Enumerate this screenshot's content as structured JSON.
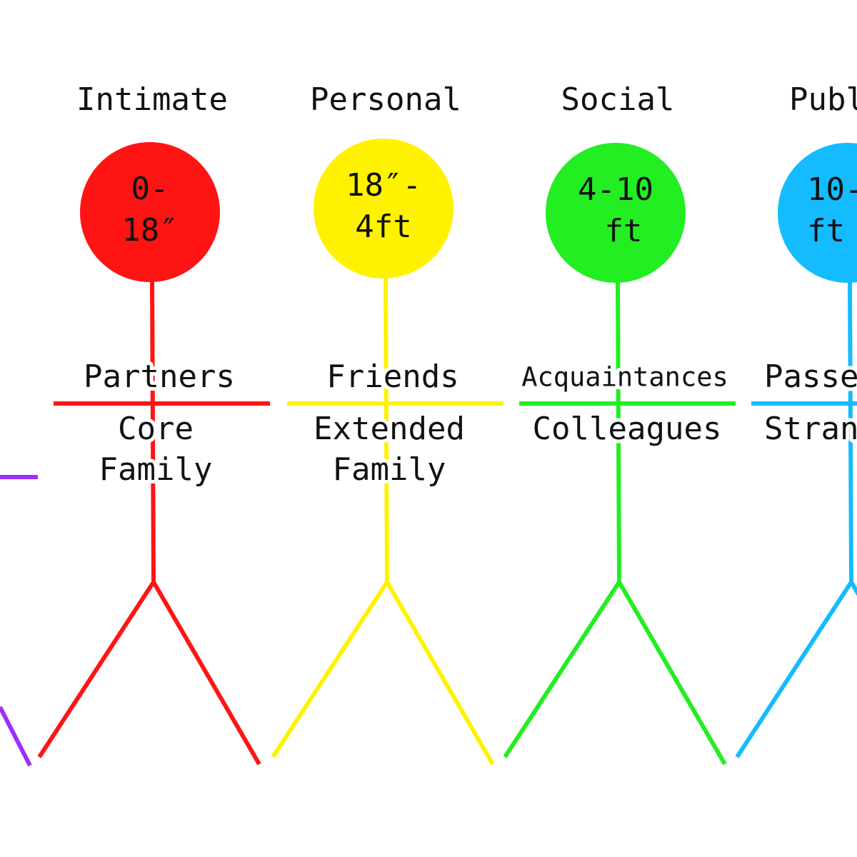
{
  "partial_figure": {
    "color": "#9b30ff"
  },
  "figures": [
    {
      "title": "Intimate",
      "distance": [
        "0-",
        "18″"
      ],
      "above": "Partners",
      "below": [
        "Core",
        "Family"
      ],
      "color": "#ff1414"
    },
    {
      "title": "Personal",
      "distance": [
        "18″-",
        "4ft"
      ],
      "above": "Friends",
      "below": [
        "Extended",
        "Family"
      ],
      "color": "#fff200"
    },
    {
      "title": "Social",
      "distance": [
        "4-10",
        "ft"
      ],
      "above": "Acquaintances",
      "below": [
        "Colleagues"
      ],
      "color": "#22ee22"
    },
    {
      "title": "Publ",
      "distance": [
        "10-",
        "ft"
      ],
      "above": "Passe",
      "below": [
        "Stran"
      ],
      "color": "#14bbff"
    }
  ]
}
